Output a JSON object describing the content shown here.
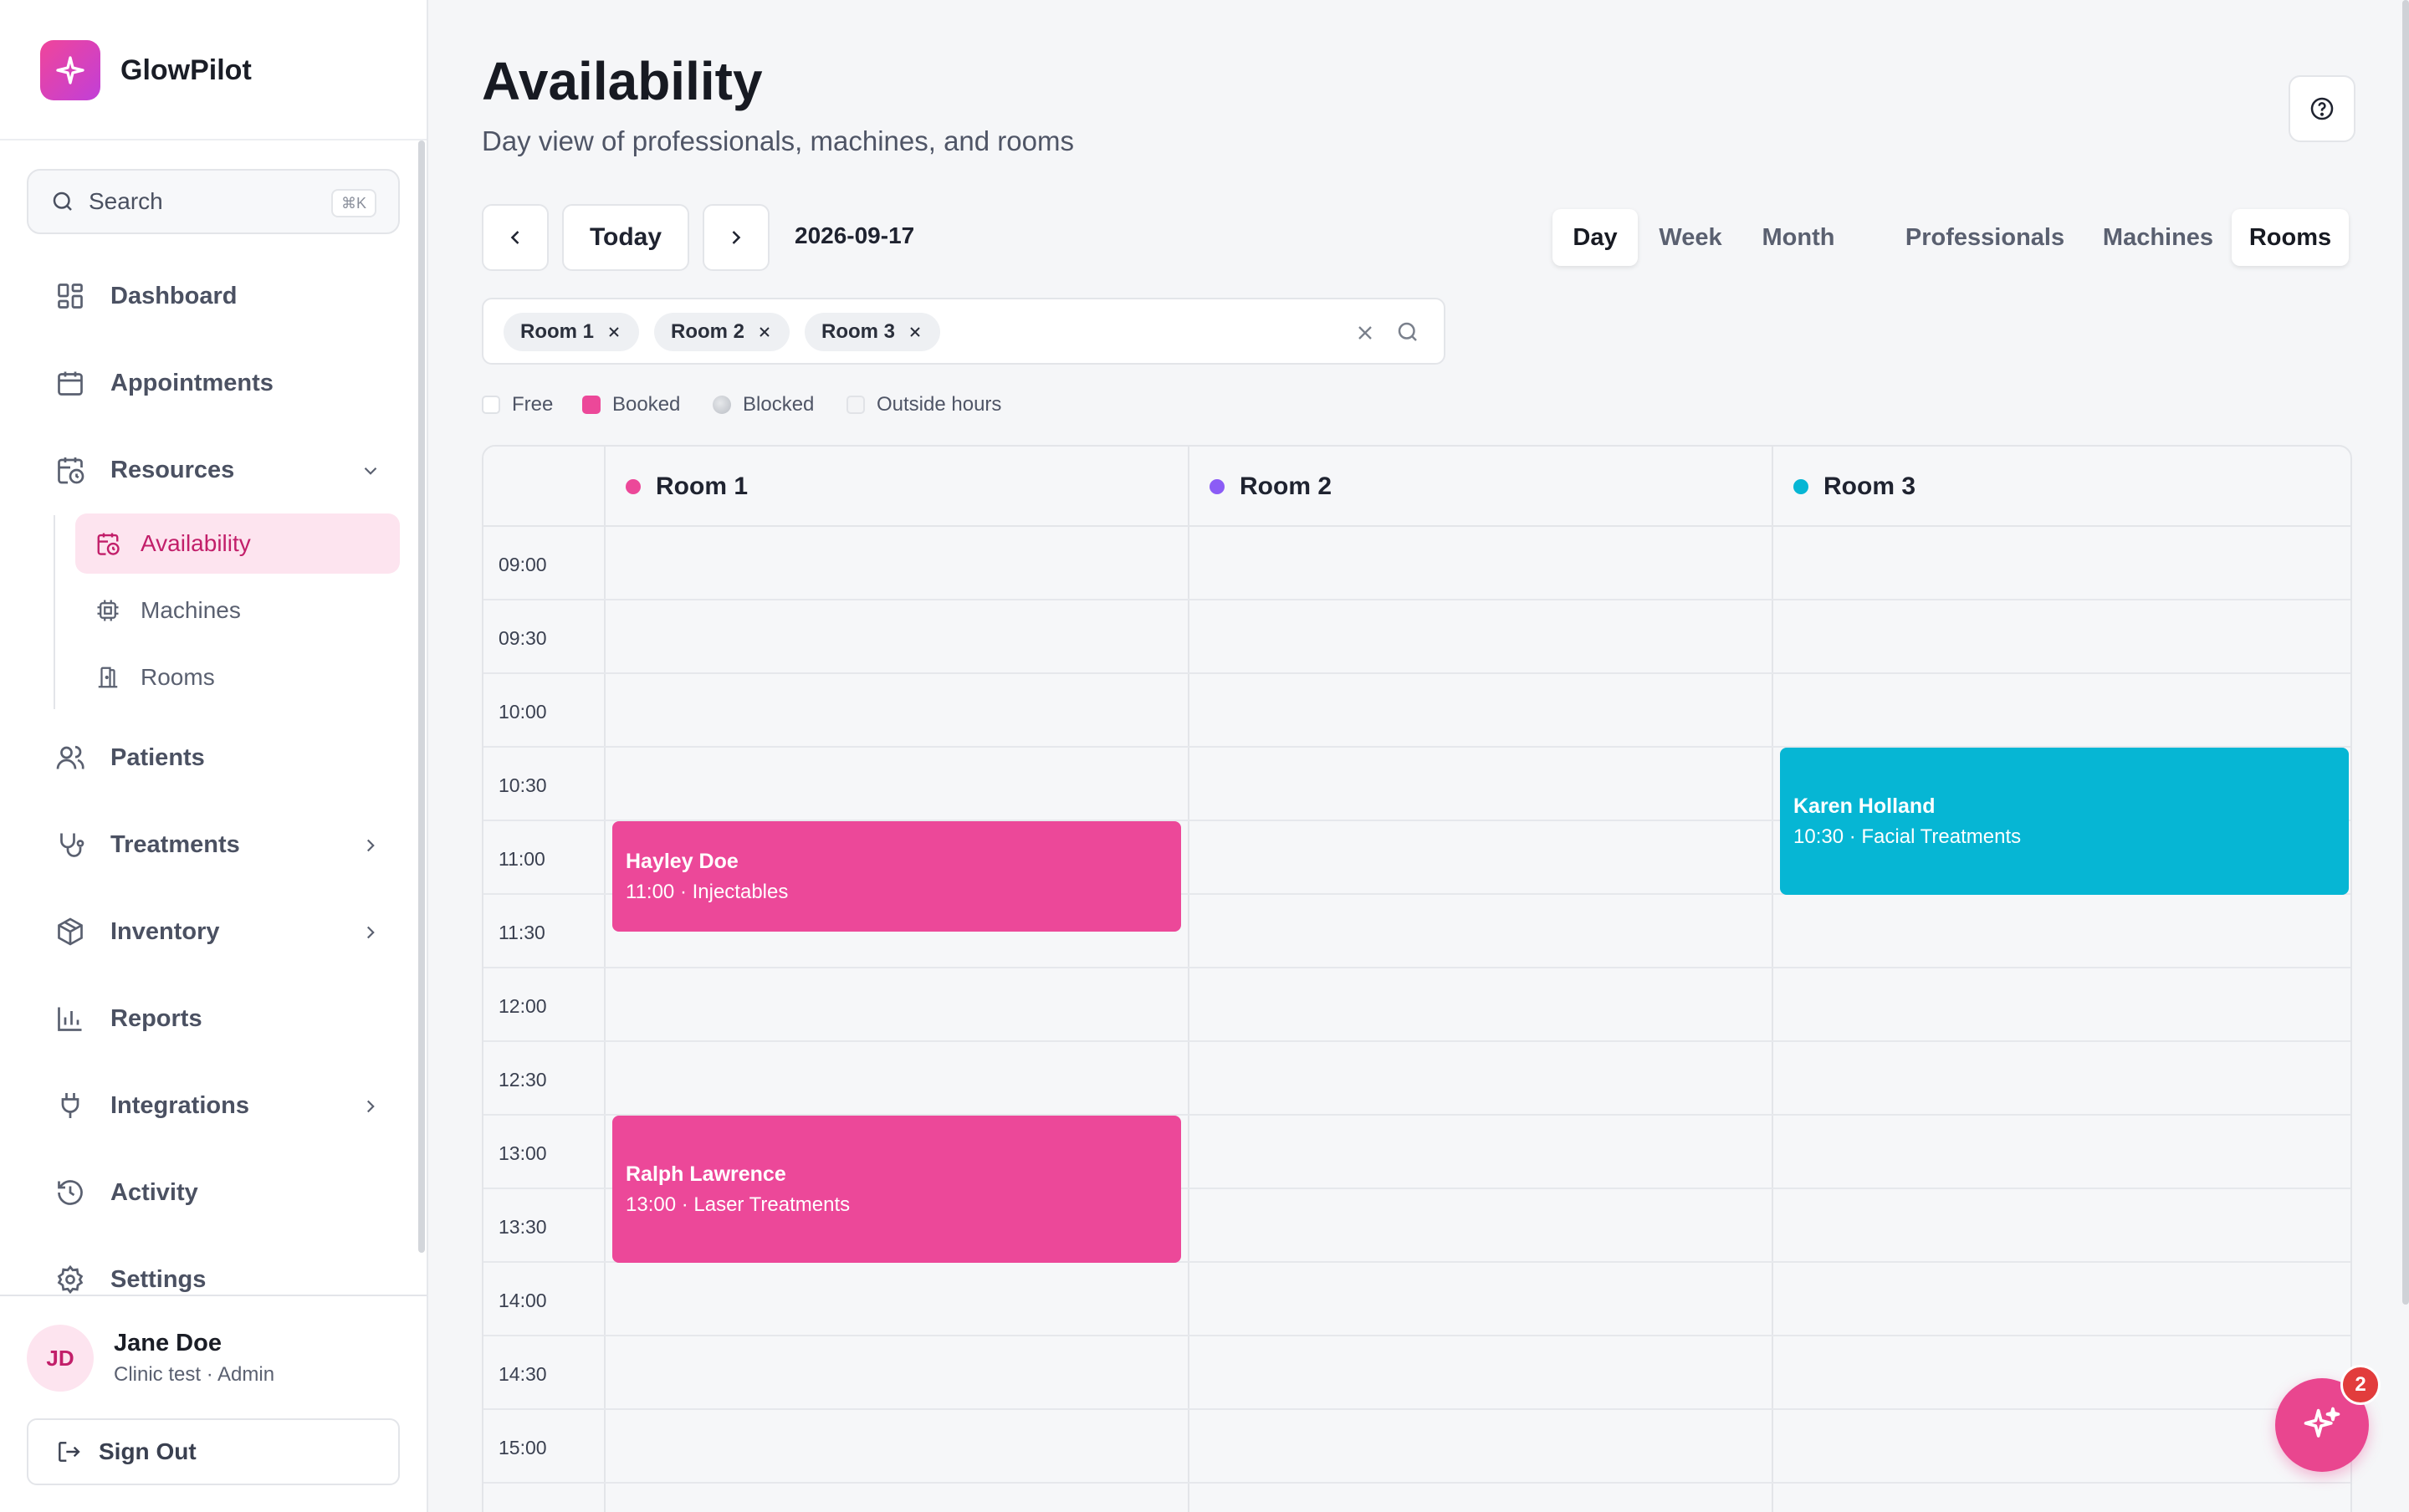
{
  "app": {
    "name": "GlowPilot"
  },
  "search": {
    "label": "Search",
    "shortcut": "⌘K"
  },
  "nav": {
    "dashboard": "Dashboard",
    "appointments": "Appointments",
    "resources": "Resources",
    "availability": "Availability",
    "machines": "Machines",
    "rooms": "Rooms",
    "patients": "Patients",
    "treatments": "Treatments",
    "inventory": "Inventory",
    "reports": "Reports",
    "integrations": "Integrations",
    "activity": "Activity",
    "settings": "Settings"
  },
  "user": {
    "initials": "JD",
    "name": "Jane Doe",
    "subtitle": "Clinic test · Admin",
    "signout": "Sign Out"
  },
  "page": {
    "title": "Availability",
    "subtitle": "Day view of professionals, machines, and rooms"
  },
  "toolbar": {
    "today": "Today",
    "date": "2026-09-17",
    "views": [
      "Day",
      "Week",
      "Month"
    ],
    "active_view": "Day",
    "resource_types": [
      "Professionals",
      "Machines",
      "Rooms"
    ],
    "active_resource_type": "Rooms"
  },
  "filter": {
    "chips": [
      "Room 1",
      "Room 2",
      "Room 3"
    ]
  },
  "legend": [
    {
      "label": "Free",
      "color": "#ffffff"
    },
    {
      "label": "Booked",
      "color": "#ec4899"
    },
    {
      "label": "Blocked",
      "color": "#c9ccd2"
    },
    {
      "label": "Outside hours",
      "color": "#f3f4f6"
    }
  ],
  "calendar": {
    "columns": [
      {
        "name": "Room 1",
        "color": "#ec4899"
      },
      {
        "name": "Room 2",
        "color": "#8b5cf6"
      },
      {
        "name": "Room 3",
        "color": "#06b6d4"
      }
    ],
    "times": [
      "09:00",
      "09:30",
      "10:00",
      "10:30",
      "11:00",
      "11:30",
      "12:00",
      "12:30",
      "13:00",
      "13:30",
      "14:00",
      "14:30",
      "15:00"
    ],
    "events": [
      {
        "column": 0,
        "name": "Hayley Doe",
        "detail": "11:00 · Injectables",
        "start": "11:00",
        "end": "11:45",
        "color": "#ec4899"
      },
      {
        "column": 0,
        "name": "Ralph Lawrence",
        "detail": "13:00 · Laser Treatments",
        "start": "13:00",
        "end": "14:00",
        "color": "#ec4899"
      },
      {
        "column": 2,
        "name": "Karen Holland",
        "detail": "10:30 · Facial Treatments",
        "start": "10:30",
        "end": "11:30",
        "color": "#06b6d4"
      }
    ]
  },
  "assistant": {
    "badge": "2"
  },
  "colors": {
    "accent": "#ec4899",
    "accent_soft": "#fde4ef",
    "accent_text": "#c21f6a"
  }
}
